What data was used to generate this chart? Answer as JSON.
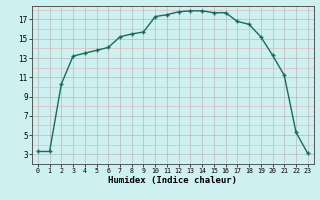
{
  "x": [
    0,
    1,
    2,
    3,
    4,
    5,
    6,
    7,
    8,
    9,
    10,
    11,
    12,
    13,
    14,
    15,
    16,
    17,
    18,
    19,
    20,
    21,
    22,
    23
  ],
  "y": [
    3.3,
    3.3,
    10.3,
    13.2,
    13.5,
    13.8,
    14.1,
    15.2,
    15.5,
    15.7,
    17.3,
    17.5,
    17.8,
    17.9,
    17.9,
    17.7,
    17.7,
    16.8,
    16.5,
    15.2,
    13.3,
    11.2,
    5.3,
    3.1
  ],
  "line_color": "#1a6b5a",
  "bg_color": "#cff0f0",
  "grid_color_major": "#b8b8b8",
  "grid_color_minor": "#dbbcbc",
  "xlabel": "Humidex (Indice chaleur)",
  "xlim": [
    -0.5,
    23.5
  ],
  "ylim": [
    2,
    18.4
  ],
  "yticks": [
    3,
    5,
    7,
    9,
    11,
    13,
    15,
    17
  ],
  "xticks": [
    0,
    1,
    2,
    3,
    4,
    5,
    6,
    7,
    8,
    9,
    10,
    11,
    12,
    13,
    14,
    15,
    16,
    17,
    18,
    19,
    20,
    21,
    22,
    23
  ],
  "marker": "+",
  "marker_size": 3.5,
  "linewidth": 1.0
}
